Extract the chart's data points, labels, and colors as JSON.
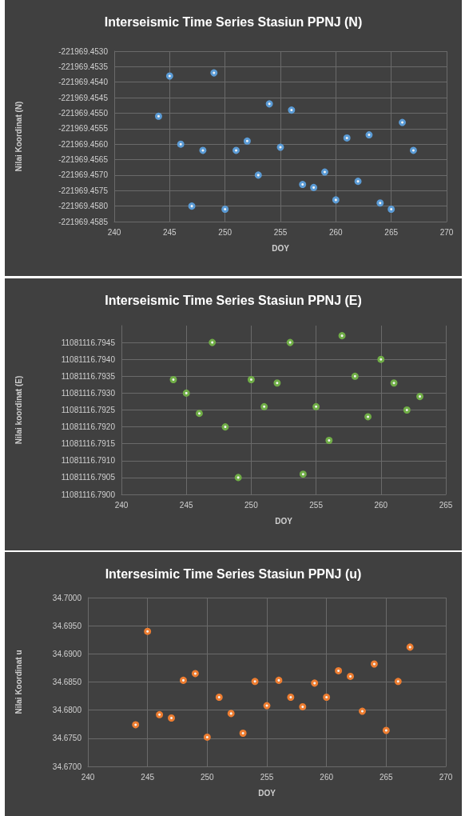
{
  "chart_data": [
    {
      "type": "scatter",
      "title": "Interseismic Time Series Stasiun PPNJ (N)",
      "xlabel": "DOY",
      "ylabel": "Nilai Koordinat (N)",
      "grid": true,
      "marker": "circle",
      "xlim": [
        240,
        270
      ],
      "xticks": [
        240,
        245,
        250,
        255,
        260,
        265,
        270
      ],
      "ylim": [
        -221969.4585,
        -221969.453
      ],
      "yticks": [
        {
          "value": -221969.4585,
          "label": "-221969.4585"
        },
        {
          "value": -221969.458,
          "label": "-221969.4580"
        },
        {
          "value": -221969.4575,
          "label": "-221969.4575"
        },
        {
          "value": -221969.457,
          "label": "-221969.4570"
        },
        {
          "value": -221969.4565,
          "label": "-221969.4565"
        },
        {
          "value": -221969.456,
          "label": "-221969.4560"
        },
        {
          "value": -221969.4555,
          "label": "-221969.4555"
        },
        {
          "value": -221969.455,
          "label": "-221969.4550"
        },
        {
          "value": -221969.4545,
          "label": "-221969.4545"
        },
        {
          "value": -221969.454,
          "label": "-221969.4540"
        },
        {
          "value": -221969.4535,
          "label": "-221969.4535"
        },
        {
          "value": -221969.453,
          "label": "-221969.4530"
        }
      ],
      "series": [
        {
          "color": "#5b9bd5",
          "x": [
            244,
            245,
            246,
            247,
            248,
            249,
            250,
            251,
            252,
            253,
            254,
            255,
            256,
            257,
            258,
            259,
            260,
            261,
            262,
            263,
            264,
            265,
            266,
            267
          ],
          "values": [
            -221969.4551,
            -221969.4538,
            -221969.456,
            -221969.458,
            -221969.4562,
            -221969.4537,
            -221969.4581,
            -221969.4562,
            -221969.4559,
            -221969.457,
            -221969.4547,
            -221969.4561,
            -221969.4549,
            -221969.4573,
            -221969.4574,
            -221969.4569,
            -221969.4578,
            -221969.4558,
            -221969.4572,
            -221969.4557,
            -221969.4579,
            -221969.4581,
            -221969.4553,
            -221969.4562
          ]
        }
      ]
    },
    {
      "type": "scatter",
      "title": "Interseismic Time Series Stasiun PPNJ (E)",
      "xlabel": "DOY",
      "ylabel": "Nilai koordinat (E)",
      "grid": true,
      "marker": "circle",
      "xlim": [
        240,
        265
      ],
      "xticks": [
        240,
        245,
        250,
        255,
        260,
        265
      ],
      "ylim": [
        11081116.79,
        11081116.795
      ],
      "yticks": [
        {
          "value": 11081116.79,
          "label": "11081116.7900"
        },
        {
          "value": 11081116.7905,
          "label": "11081116.7905"
        },
        {
          "value": 11081116.791,
          "label": "11081116.7910"
        },
        {
          "value": 11081116.7915,
          "label": "11081116.7915"
        },
        {
          "value": 11081116.792,
          "label": "11081116.7920"
        },
        {
          "value": 11081116.7925,
          "label": "11081116.7925"
        },
        {
          "value": 11081116.793,
          "label": "11081116.7930"
        },
        {
          "value": 11081116.7935,
          "label": "11081116.7935"
        },
        {
          "value": 11081116.794,
          "label": "11081116.7940"
        },
        {
          "value": 11081116.7945,
          "label": "11081116.7945"
        }
      ],
      "series": [
        {
          "color": "#70ad47",
          "x": [
            244,
            245,
            246,
            247,
            248,
            249,
            250,
            251,
            252,
            253,
            254,
            255,
            256,
            257,
            258,
            259,
            260,
            261,
            262,
            263
          ],
          "values": [
            11081116.7934,
            11081116.793,
            11081116.7924,
            11081116.7945,
            11081116.792,
            11081116.7905,
            11081116.7934,
            11081116.7926,
            11081116.7933,
            11081116.7945,
            11081116.7906,
            11081116.7926,
            11081116.7916,
            11081116.7947,
            11081116.7935,
            11081116.7923,
            11081116.794,
            11081116.7933,
            11081116.7925,
            11081116.7929
          ]
        }
      ]
    },
    {
      "type": "scatter",
      "title": "Intersesimic Time Series Stasiun PPNJ (u)",
      "xlabel": "DOY",
      "ylabel": "Nilai Koordinat u",
      "grid": true,
      "marker": "circle",
      "xlim": [
        240,
        270
      ],
      "xticks": [
        240,
        245,
        250,
        255,
        260,
        265,
        270
      ],
      "ylim": [
        34.67,
        34.7
      ],
      "yticks": [
        {
          "value": 34.67,
          "label": "34.6700"
        },
        {
          "value": 34.675,
          "label": "34.6750"
        },
        {
          "value": 34.68,
          "label": "34.6800"
        },
        {
          "value": 34.685,
          "label": "34.6850"
        },
        {
          "value": 34.69,
          "label": "34.6900"
        },
        {
          "value": 34.695,
          "label": "34.6950"
        },
        {
          "value": 34.7,
          "label": "34.7000"
        }
      ],
      "series": [
        {
          "color": "#ed7d31",
          "x": [
            244,
            245,
            246,
            247,
            248,
            249,
            250,
            251,
            252,
            253,
            254,
            255,
            256,
            257,
            258,
            259,
            260,
            261,
            262,
            263,
            264,
            265,
            266,
            267
          ],
          "values": [
            34.6774,
            34.694,
            34.6792,
            34.6786,
            34.6853,
            34.6865,
            34.6752,
            34.6823,
            34.6794,
            34.6759,
            34.6851,
            34.6808,
            34.6853,
            34.6823,
            34.6806,
            34.6848,
            34.6823,
            34.687,
            34.686,
            34.6798,
            34.6882,
            34.6764,
            34.6851,
            34.6912
          ]
        }
      ]
    }
  ]
}
